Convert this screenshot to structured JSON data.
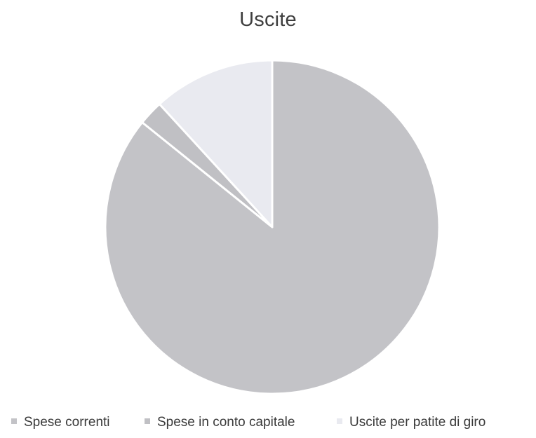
{
  "chart_data": {
    "type": "pie",
    "title": "Uscite",
    "series": [
      {
        "name": "Spese correnti",
        "value": 85.8
      },
      {
        "name": "Spese in conto capitale",
        "value": 2.4
      },
      {
        "name": "Uscite per patite di giro",
        "value": 11.8
      }
    ],
    "colors": [
      "#c3c3c7",
      "#c0c0c4",
      "#e9eaf0"
    ],
    "legend_position": "bottom"
  }
}
